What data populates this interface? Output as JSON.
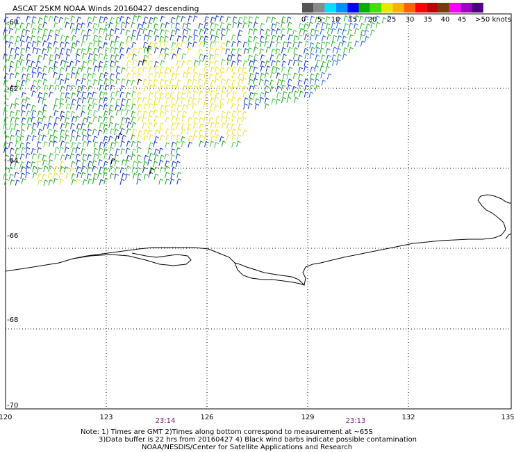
{
  "title": "ASCAT 25KM NOAA Winds 20160427 descending",
  "legend": {
    "labels": [
      "0",
      "5",
      "10",
      "15",
      "20",
      "25",
      "30",
      "35",
      "40",
      "45",
      ">50 knots"
    ],
    "colors": [
      "#555555",
      "#8a8a8a",
      "#00e0ff",
      "#0090ff",
      "#0000ff",
      "#00b000",
      "#40e000",
      "#e8e800",
      "#ffb000",
      "#ff6000",
      "#ff0000",
      "#c00000",
      "#7a3a10",
      "#ff00ff",
      "#a000c0",
      "#500080"
    ]
  },
  "axes": {
    "lat_labels": [
      "-60",
      "-62",
      "-64",
      "-66",
      "-68",
      "-70"
    ],
    "lon_labels": [
      "120",
      "123",
      "126",
      "129",
      "132",
      "135"
    ]
  },
  "times": [
    "23:14",
    "23:13"
  ],
  "notes": [
    "Note: 1) Times are GMT 2)Times along bottom correspond to measurement at ~65S",
    "3)Data buffer is 22 hrs from 20160427 4) Black wind barbs indicate possible contamination",
    "NOAA/NESDIS/Center for Satellite Applications and Research"
  ]
}
